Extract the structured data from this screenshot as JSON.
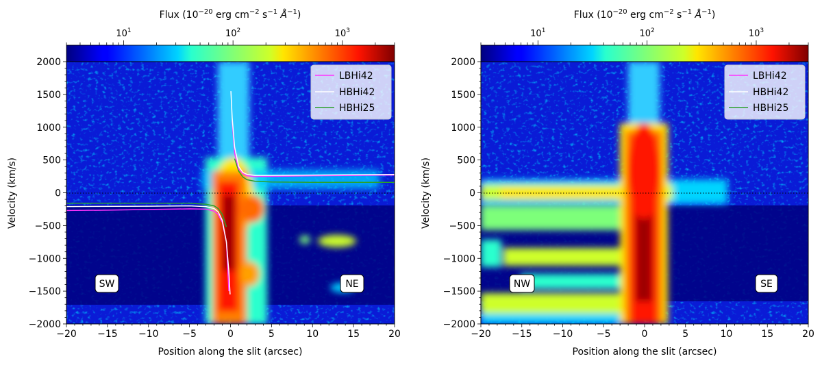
{
  "figure": {
    "colorbar": {
      "label": "Flux (10",
      "label_exp1": "−20",
      "label_mid": " erg cm",
      "label_exp2": "−2",
      "label_mid2": " s",
      "label_exp3": "−1",
      "label_mid3": " ",
      "label_unit": "Å",
      "label_exp4": "−1",
      "label_end": ")",
      "scale": "log",
      "range": [
        3,
        3000
      ],
      "ticks": [
        {
          "base": "10",
          "exp": "1",
          "value": 10
        },
        {
          "base": "10",
          "exp": "2",
          "value": 100
        },
        {
          "base": "10",
          "exp": "3",
          "value": 1000
        }
      ],
      "colormap": "jet"
    }
  },
  "chart_data": [
    {
      "type": "heatmap",
      "panel": "left",
      "xlabel": "Position along the slit (arcsec)",
      "ylabel": "Velocity (km/s)",
      "xlim": [
        -20,
        20
      ],
      "ylim": [
        -2000,
        2000
      ],
      "xticks": [
        "−20",
        "−15",
        "−10",
        "−5",
        "0",
        "5",
        "10",
        "15",
        "20"
      ],
      "yticks": [
        "−2000",
        "−1500",
        "−1000",
        "−500",
        "0",
        "500",
        "1000",
        "1500",
        "2000"
      ],
      "zero_line": {
        "y": 0,
        "style": "dotted",
        "color": "#000000"
      },
      "annotations": [
        {
          "text": "SW",
          "x": -15,
          "y": -1380
        },
        {
          "text": "NE",
          "x": 14.7,
          "y": -1380
        }
      ],
      "legend": {
        "position": "top-right"
      },
      "series": [
        {
          "name": "LBHi42",
          "color": "#ff33ff",
          "x": [
            -20,
            -15,
            -10,
            -5,
            -3,
            -2,
            -1.5,
            -1,
            -0.5,
            -0.2
          ],
          "y": [
            -270,
            -265,
            -255,
            -245,
            -250,
            -280,
            -330,
            -450,
            -750,
            -1500
          ],
          "x2": [
            0.2,
            0.5,
            1,
            1.5,
            2,
            3,
            5,
            10,
            15,
            20
          ],
          "y2": [
            1100,
            600,
            360,
            290,
            260,
            245,
            250,
            260,
            265,
            270
          ]
        },
        {
          "name": "HBHi42",
          "color": "#ffffff",
          "x": [
            -20,
            -10,
            -5,
            -3,
            -2,
            -1.5,
            -1,
            -0.5,
            -0.2,
            -0.05
          ],
          "y": [
            -210,
            -205,
            -200,
            -210,
            -240,
            -290,
            -420,
            -750,
            -1200,
            -1550
          ],
          "x2": [
            0.05,
            0.2,
            0.5,
            1,
            1.5,
            2,
            3,
            5,
            10,
            20
          ],
          "y2": [
            1550,
            1150,
            700,
            400,
            310,
            280,
            265,
            265,
            270,
            280
          ]
        },
        {
          "name": "HBHi25",
          "color": "#2ca02c",
          "x": [
            -20,
            -10,
            -5,
            -3,
            -2,
            -1.5,
            -1,
            -0.5
          ],
          "y": [
            -160,
            -160,
            -160,
            -175,
            -200,
            -240,
            -330,
            -520
          ],
          "x2": [
            0.5,
            1,
            1.5,
            2,
            3,
            5,
            10,
            20
          ],
          "y2": [
            520,
            330,
            240,
            200,
            175,
            165,
            160,
            160
          ]
        }
      ]
    },
    {
      "type": "heatmap",
      "panel": "right",
      "xlabel": "Position along the slit (arcsec)",
      "ylabel": "Velocity (km/s)",
      "xlim": [
        -20,
        20
      ],
      "ylim": [
        -2000,
        2000
      ],
      "xticks": [
        "−20",
        "−15",
        "−10",
        "−5",
        "0",
        "5",
        "10",
        "15",
        "20"
      ],
      "yticks": [
        "−2000",
        "−1500",
        "−1000",
        "−500",
        "0",
        "500",
        "1000",
        "1500",
        "2000"
      ],
      "zero_line": {
        "y": 0,
        "style": "dotted",
        "color": "#000000"
      },
      "annotations": [
        {
          "text": "NW",
          "x": -15,
          "y": -1380
        },
        {
          "text": "SE",
          "x": 15,
          "y": -1380
        }
      ],
      "legend": {
        "position": "top-right"
      },
      "series": [
        {
          "name": "LBHi42",
          "color": "#ff33ff"
        },
        {
          "name": "HBHi42",
          "color": "#ffffff"
        },
        {
          "name": "HBHi25",
          "color": "#2ca02c"
        }
      ]
    }
  ]
}
